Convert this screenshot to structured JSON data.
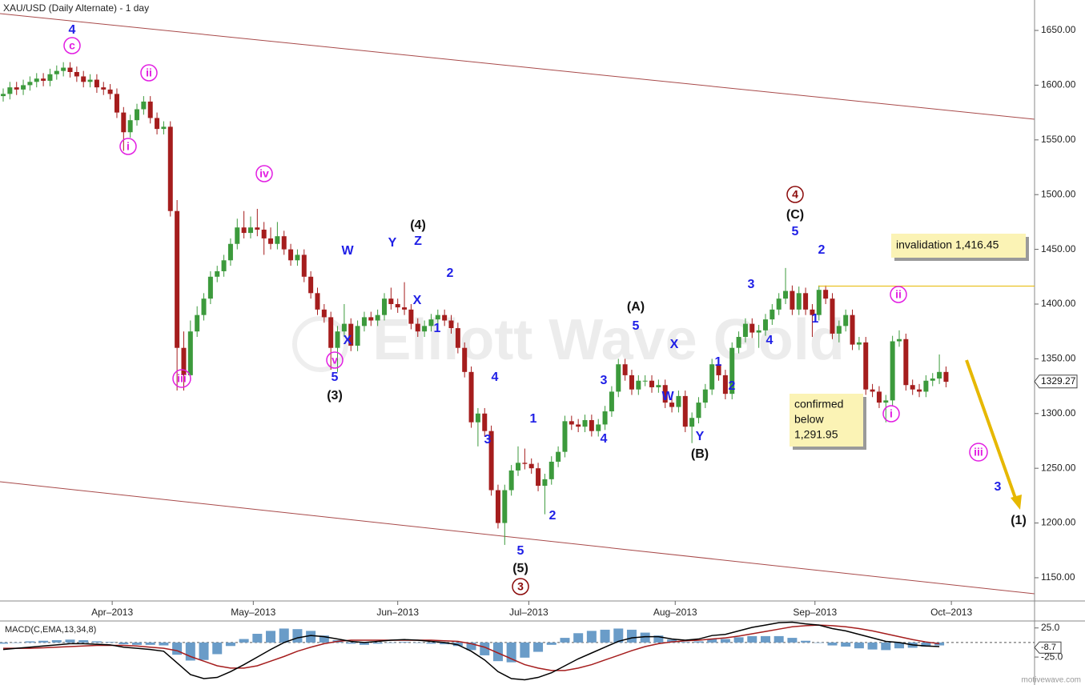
{
  "chart_data": {
    "type": "candlestick",
    "title": "XAU/USD (Daily Alternate) - 1 day",
    "watermark": "Elliott Wave Gold",
    "footer": "motivewave.com",
    "up_color": "#3c9a3c",
    "down_color": "#a51d1d",
    "xlim": [
      -0.48,
      154
    ],
    "xticks": [
      {
        "value": 16.3,
        "label": "Apr–2013"
      },
      {
        "value": 37.4,
        "label": "May–2013"
      },
      {
        "value": 59.0,
        "label": "Jun–2013"
      },
      {
        "value": 78.6,
        "label": "Jul–2013"
      },
      {
        "value": 100.5,
        "label": "Aug–2013"
      },
      {
        "value": 121.4,
        "label": "Sep–2013"
      },
      {
        "value": 141.8,
        "label": "Oct–2013"
      }
    ],
    "ylim": [
      1129.5,
      1677.8
    ],
    "yticks": [
      {
        "value": 1650,
        "label": "1650.00"
      },
      {
        "value": 1600,
        "label": "1600.00"
      },
      {
        "value": 1550,
        "label": "1550.00"
      },
      {
        "value": 1500,
        "label": "1500.00"
      },
      {
        "value": 1450,
        "label": "1450.00"
      },
      {
        "value": 1400,
        "label": "1400.00"
      },
      {
        "value": 1350,
        "label": "1350.00"
      },
      {
        "value": 1300,
        "label": "1300.00"
      },
      {
        "value": 1250,
        "label": "1250.00"
      },
      {
        "value": 1200,
        "label": "1200.00"
      },
      {
        "value": 1150,
        "label": "1150.00"
      }
    ],
    "last_price": 1329.27,
    "open": [
      1590,
      1592,
      1598,
      1596,
      1600,
      1603,
      1606,
      1604,
      1610,
      1613,
      1616,
      1612,
      1608,
      1603,
      1605,
      1598,
      1596,
      1592,
      1575,
      1557,
      1568,
      1578,
      1585,
      1570,
      1560,
      1562,
      1485,
      1360,
      1335,
      1375,
      1390,
      1405,
      1425,
      1430,
      1440,
      1455,
      1470,
      1465,
      1470,
      1468,
      1460,
      1455,
      1462,
      1450,
      1440,
      1445,
      1425,
      1410,
      1395,
      1388,
      1360,
      1375,
      1382,
      1362,
      1380,
      1388,
      1385,
      1390,
      1405,
      1400,
      1397,
      1395,
      1382,
      1375,
      1380,
      1386,
      1390,
      1385,
      1378,
      1360,
      1338,
      1292,
      1300,
      1284,
      1230,
      1200,
      1230,
      1248,
      1255,
      1254,
      1250,
      1234,
      1240,
      1256,
      1265,
      1293,
      1290,
      1288,
      1294,
      1284,
      1290,
      1302,
      1320,
      1345,
      1335,
      1322,
      1330,
      1330,
      1324,
      1326,
      1310,
      1306,
      1316,
      1288,
      1296,
      1310,
      1322,
      1345,
      1335,
      1318,
      1360,
      1370,
      1382,
      1374,
      1376,
      1386,
      1395,
      1405,
      1412,
      1395,
      1410,
      1395,
      1390,
      1413,
      1405,
      1373,
      1380,
      1390,
      1363,
      1365,
      1322,
      1320,
      1310,
      1312,
      1366,
      1368,
      1326,
      1322,
      1320,
      1330,
      1332,
      1338
    ],
    "high": [
      1597,
      1603,
      1603,
      1605,
      1608,
      1611,
      1611,
      1615,
      1618,
      1621,
      1621,
      1617,
      1613,
      1610,
      1610,
      1603,
      1601,
      1597,
      1580,
      1573,
      1583,
      1590,
      1590,
      1575,
      1567,
      1567,
      1495,
      1375,
      1385,
      1398,
      1410,
      1430,
      1435,
      1445,
      1460,
      1478,
      1485,
      1480,
      1487,
      1475,
      1470,
      1475,
      1467,
      1455,
      1450,
      1450,
      1430,
      1415,
      1400,
      1393,
      1380,
      1400,
      1387,
      1385,
      1393,
      1393,
      1395,
      1410,
      1415,
      1405,
      1420,
      1400,
      1387,
      1385,
      1391,
      1395,
      1395,
      1390,
      1383,
      1365,
      1343,
      1305,
      1305,
      1289,
      1235,
      1235,
      1253,
      1270,
      1268,
      1259,
      1255,
      1245,
      1261,
      1270,
      1298,
      1298,
      1295,
      1299,
      1299,
      1295,
      1307,
      1325,
      1350,
      1350,
      1340,
      1335,
      1335,
      1335,
      1331,
      1331,
      1315,
      1321,
      1321,
      1301,
      1315,
      1327,
      1350,
      1350,
      1340,
      1365,
      1375,
      1387,
      1387,
      1381,
      1391,
      1400,
      1410,
      1433,
      1417,
      1416,
      1415,
      1400,
      1417,
      1417,
      1410,
      1385,
      1395,
      1395,
      1370,
      1370,
      1327,
      1325,
      1317,
      1371,
      1376,
      1373,
      1331,
      1327,
      1335,
      1337,
      1354,
      1343
    ],
    "low": [
      1585,
      1587,
      1591,
      1591,
      1595,
      1598,
      1599,
      1599,
      1605,
      1608,
      1607,
      1603,
      1598,
      1598,
      1593,
      1591,
      1587,
      1570,
      1540,
      1552,
      1563,
      1573,
      1565,
      1555,
      1555,
      1480,
      1321,
      1321,
      1330,
      1370,
      1385,
      1400,
      1420,
      1425,
      1435,
      1450,
      1460,
      1460,
      1462,
      1445,
      1450,
      1450,
      1445,
      1435,
      1435,
      1420,
      1405,
      1390,
      1383,
      1340,
      1338,
      1370,
      1357,
      1357,
      1375,
      1380,
      1380,
      1385,
      1395,
      1392,
      1390,
      1377,
      1370,
      1370,
      1375,
      1381,
      1380,
      1373,
      1355,
      1333,
      1287,
      1270,
      1279,
      1225,
      1195,
      1180,
      1225,
      1243,
      1249,
      1245,
      1229,
      1208,
      1235,
      1251,
      1260,
      1285,
      1283,
      1283,
      1279,
      1279,
      1285,
      1297,
      1315,
      1330,
      1317,
      1317,
      1325,
      1319,
      1319,
      1305,
      1301,
      1301,
      1283,
      1273,
      1291,
      1305,
      1317,
      1330,
      1313,
      1313,
      1355,
      1365,
      1369,
      1360,
      1371,
      1381,
      1390,
      1400,
      1390,
      1390,
      1390,
      1370,
      1385,
      1400,
      1368,
      1365,
      1375,
      1358,
      1358,
      1317,
      1315,
      1305,
      1292,
      1307,
      1361,
      1321,
      1317,
      1315,
      1315,
      1325,
      1327,
      1324
    ],
    "close": [
      1592,
      1598,
      1596,
      1600,
      1603,
      1606,
      1604,
      1610,
      1613,
      1616,
      1612,
      1608,
      1603,
      1605,
      1598,
      1596,
      1592,
      1575,
      1557,
      1568,
      1578,
      1585,
      1570,
      1560,
      1562,
      1485,
      1360,
      1335,
      1375,
      1390,
      1405,
      1425,
      1430,
      1440,
      1455,
      1470,
      1465,
      1470,
      1468,
      1460,
      1455,
      1462,
      1450,
      1440,
      1445,
      1425,
      1410,
      1395,
      1388,
      1360,
      1375,
      1382,
      1362,
      1380,
      1388,
      1385,
      1390,
      1405,
      1400,
      1397,
      1395,
      1382,
      1375,
      1380,
      1386,
      1390,
      1385,
      1378,
      1360,
      1338,
      1292,
      1300,
      1284,
      1230,
      1200,
      1230,
      1248,
      1255,
      1254,
      1250,
      1234,
      1240,
      1256,
      1265,
      1293,
      1290,
      1288,
      1294,
      1284,
      1290,
      1302,
      1320,
      1345,
      1335,
      1322,
      1330,
      1330,
      1324,
      1326,
      1310,
      1306,
      1316,
      1288,
      1296,
      1310,
      1322,
      1345,
      1335,
      1318,
      1360,
      1370,
      1382,
      1374,
      1376,
      1386,
      1395,
      1405,
      1412,
      1395,
      1410,
      1395,
      1390,
      1413,
      1405,
      1373,
      1380,
      1390,
      1363,
      1365,
      1322,
      1320,
      1310,
      1312,
      1366,
      1368,
      1326,
      1322,
      1320,
      1330,
      1332,
      1338,
      1329
    ],
    "invalidation_level": 1416.45,
    "invalidation_text": "invalidation 1,416.45",
    "confirm_text": [
      "confirmed",
      "below",
      "1,291.95"
    ],
    "annotations": [
      {
        "text": "4",
        "color": "#1f1fe6"
      },
      {
        "text": "c",
        "color": "#e21ee2",
        "circled": true
      },
      {
        "text": "ii",
        "color": "#e21ee2",
        "circled": true
      },
      {
        "text": "i",
        "color": "#e21ee2",
        "circled": true
      },
      {
        "text": "iii",
        "color": "#e21ee2",
        "circled": true
      },
      {
        "text": "iv",
        "color": "#e21ee2",
        "circled": true
      },
      {
        "text": "v",
        "color": "#e21ee2",
        "circled": true
      },
      {
        "text": "5",
        "color": "#1f1fe6"
      },
      {
        "text": "(3)",
        "color": "#111111"
      },
      {
        "text": "W",
        "color": "#1f1fe6"
      },
      {
        "text": "X",
        "color": "#1f1fe6"
      },
      {
        "text": "Y",
        "color": "#1f1fe6"
      },
      {
        "text": "Z",
        "color": "#1f1fe6"
      },
      {
        "text": "(4)",
        "color": "#111111"
      },
      {
        "text": "X",
        "color": "#1f1fe6"
      },
      {
        "text": "2",
        "color": "#1f1fe6"
      },
      {
        "text": "1",
        "color": "#1f1fe6"
      },
      {
        "text": "4",
        "color": "#1f1fe6"
      },
      {
        "text": "3",
        "color": "#1f1fe6"
      },
      {
        "text": "1",
        "color": "#1f1fe6"
      },
      {
        "text": "4",
        "color": "#1f1fe6"
      },
      {
        "text": "2",
        "color": "#1f1fe6"
      },
      {
        "text": "5",
        "color": "#1f1fe6"
      },
      {
        "text": "(5)",
        "color": "#111111"
      },
      {
        "text": "3",
        "color": "#8b0a0a",
        "circled": true
      },
      {
        "text": "3",
        "color": "#1f1fe6"
      },
      {
        "text": "(A)",
        "color": "#111111"
      },
      {
        "text": "5",
        "color": "#1f1fe6"
      },
      {
        "text": "X",
        "color": "#1f1fe6"
      },
      {
        "text": "W",
        "color": "#1f1fe6"
      },
      {
        "text": "Y",
        "color": "#1f1fe6"
      },
      {
        "text": "(B)",
        "color": "#111111"
      },
      {
        "text": "1",
        "color": "#1f1fe6"
      },
      {
        "text": "2",
        "color": "#1f1fe6"
      },
      {
        "text": "3",
        "color": "#1f1fe6"
      },
      {
        "text": "4",
        "color": "#1f1fe6"
      },
      {
        "text": "4",
        "color": "#8b0a0a",
        "circled": true
      },
      {
        "text": "(C)",
        "color": "#111111"
      },
      {
        "text": "5",
        "color": "#1f1fe6"
      },
      {
        "text": "2",
        "color": "#1f1fe6"
      },
      {
        "text": "1",
        "color": "#1f1fe6"
      },
      {
        "text": "ii",
        "color": "#e21ee2",
        "circled": true
      },
      {
        "text": "i",
        "color": "#e21ee2",
        "circled": true
      },
      {
        "text": "iii",
        "color": "#e21ee2",
        "circled": true
      },
      {
        "text": "3",
        "color": "#1f1fe6"
      },
      {
        "text": "(1)",
        "color": "#111111"
      }
    ],
    "macd": {
      "label": "MACD(C,EMA,13,34,8)",
      "ylim": [
        -73,
        37
      ],
      "yticks": [
        {
          "value": 25,
          "label": "25.0"
        },
        {
          "value": -25,
          "label": "-25.0"
        }
      ],
      "last_value": -8.7,
      "hist_color": "#6a9cc8",
      "macd_color": "#000000",
      "signal_color": "#a51d1d",
      "x": [
        0,
        2,
        4,
        6,
        8,
        10,
        12,
        14,
        16,
        18,
        20,
        22,
        24,
        26,
        28,
        30,
        32,
        34,
        36,
        38,
        40,
        42,
        44,
        46,
        48,
        50,
        52,
        54,
        56,
        58,
        60,
        62,
        64,
        66,
        68,
        70,
        72,
        74,
        76,
        78,
        80,
        82,
        84,
        86,
        88,
        90,
        92,
        94,
        96,
        98,
        100,
        102,
        104,
        106,
        108,
        110,
        112,
        114,
        116,
        118,
        120,
        122,
        124,
        126,
        128,
        130,
        132,
        134,
        136,
        138,
        140
      ],
      "macd": [
        -12,
        -10,
        -8,
        -6,
        -4,
        -2,
        -2,
        -3,
        -4,
        -8,
        -10,
        -12,
        -15,
        -35,
        -55,
        -62,
        -60,
        -50,
        -38,
        -25,
        -12,
        0,
        8,
        12,
        10,
        6,
        2,
        0,
        2,
        4,
        5,
        4,
        2,
        0,
        -4,
        -15,
        -30,
        -50,
        -62,
        -64,
        -60,
        -52,
        -40,
        -28,
        -18,
        -8,
        2,
        8,
        10,
        10,
        6,
        4,
        6,
        12,
        14,
        20,
        26,
        30,
        34,
        35,
        32,
        30,
        24,
        20,
        14,
        8,
        2,
        0,
        -4,
        -6,
        -7
      ],
      "signal": [
        -10,
        -10,
        -10,
        -9,
        -8,
        -7,
        -6,
        -5,
        -5,
        -5,
        -6,
        -8,
        -10,
        -14,
        -24,
        -32,
        -40,
        -44,
        -44,
        -40,
        -32,
        -24,
        -15,
        -8,
        -2,
        2,
        4,
        4,
        4,
        4,
        4,
        4,
        4,
        3,
        2,
        -2,
        -8,
        -18,
        -28,
        -38,
        -44,
        -48,
        -48,
        -44,
        -38,
        -30,
        -22,
        -14,
        -7,
        -2,
        1,
        3,
        4,
        6,
        8,
        11,
        15,
        19,
        23,
        27,
        29,
        30,
        29,
        27,
        24,
        20,
        15,
        10,
        5,
        1,
        -2
      ],
      "histogram": [
        -2,
        0,
        2,
        3,
        4,
        5,
        4,
        2,
        1,
        -3,
        -4,
        -4,
        -5,
        -21,
        -31,
        -30,
        -20,
        -6,
        6,
        15,
        20,
        24,
        23,
        20,
        12,
        4,
        -2,
        -4,
        -2,
        0,
        1,
        0,
        -2,
        -3,
        -6,
        -13,
        -22,
        -32,
        -34,
        -26,
        -16,
        -4,
        8,
        16,
        20,
        22,
        24,
        22,
        17,
        12,
        5,
        1,
        2,
        6,
        6,
        9,
        11,
        11,
        11,
        8,
        3,
        0,
        -5,
        -7,
        -10,
        -12,
        -13,
        -10,
        -9,
        -7,
        -5
      ]
    }
  }
}
